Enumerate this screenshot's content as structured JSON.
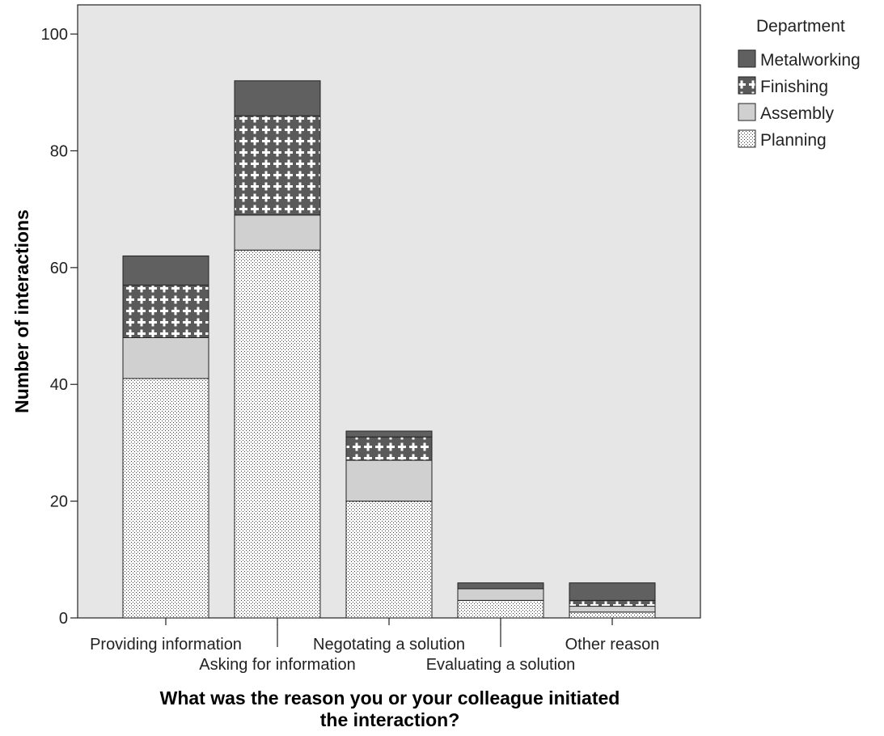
{
  "chart_data": {
    "type": "bar",
    "stacked": true,
    "categories": [
      "Providing information",
      "Asking for information",
      "Negotating a solution",
      "Evaluating a solution",
      "Other reason"
    ],
    "series": [
      {
        "name": "Planning",
        "values": [
          41,
          63,
          20,
          3,
          1
        ]
      },
      {
        "name": "Assembly",
        "values": [
          7,
          6,
          7,
          2,
          1
        ]
      },
      {
        "name": "Finishing",
        "values": [
          9,
          17,
          4,
          0,
          1
        ]
      },
      {
        "name": "Metalworking",
        "values": [
          5,
          6,
          1,
          1,
          3
        ]
      }
    ],
    "totals": [
      62,
      92,
      32,
      6,
      6
    ],
    "xlabel_lines": [
      "What was the reason you or your colleague initiated",
      "the interaction?"
    ],
    "ylabel": "Number of interactions",
    "ylim": [
      0,
      105
    ],
    "yticks": [
      0,
      20,
      40,
      60,
      80,
      100
    ],
    "grid": false,
    "legend": {
      "title": "Department",
      "placement": "right",
      "order": [
        "Metalworking",
        "Finishing",
        "Assembly",
        "Planning"
      ]
    },
    "colors": {
      "plot_background": "#e6e6e6",
      "Planning": "#ffffff",
      "Assembly": "#d0d0d0",
      "Finishing": "#585858",
      "Metalworking": "#606060",
      "stroke": "#222222"
    },
    "patterns": {
      "Planning": "dots",
      "Assembly": "solid",
      "Finishing": "crosses",
      "Metalworking": "solid"
    }
  }
}
